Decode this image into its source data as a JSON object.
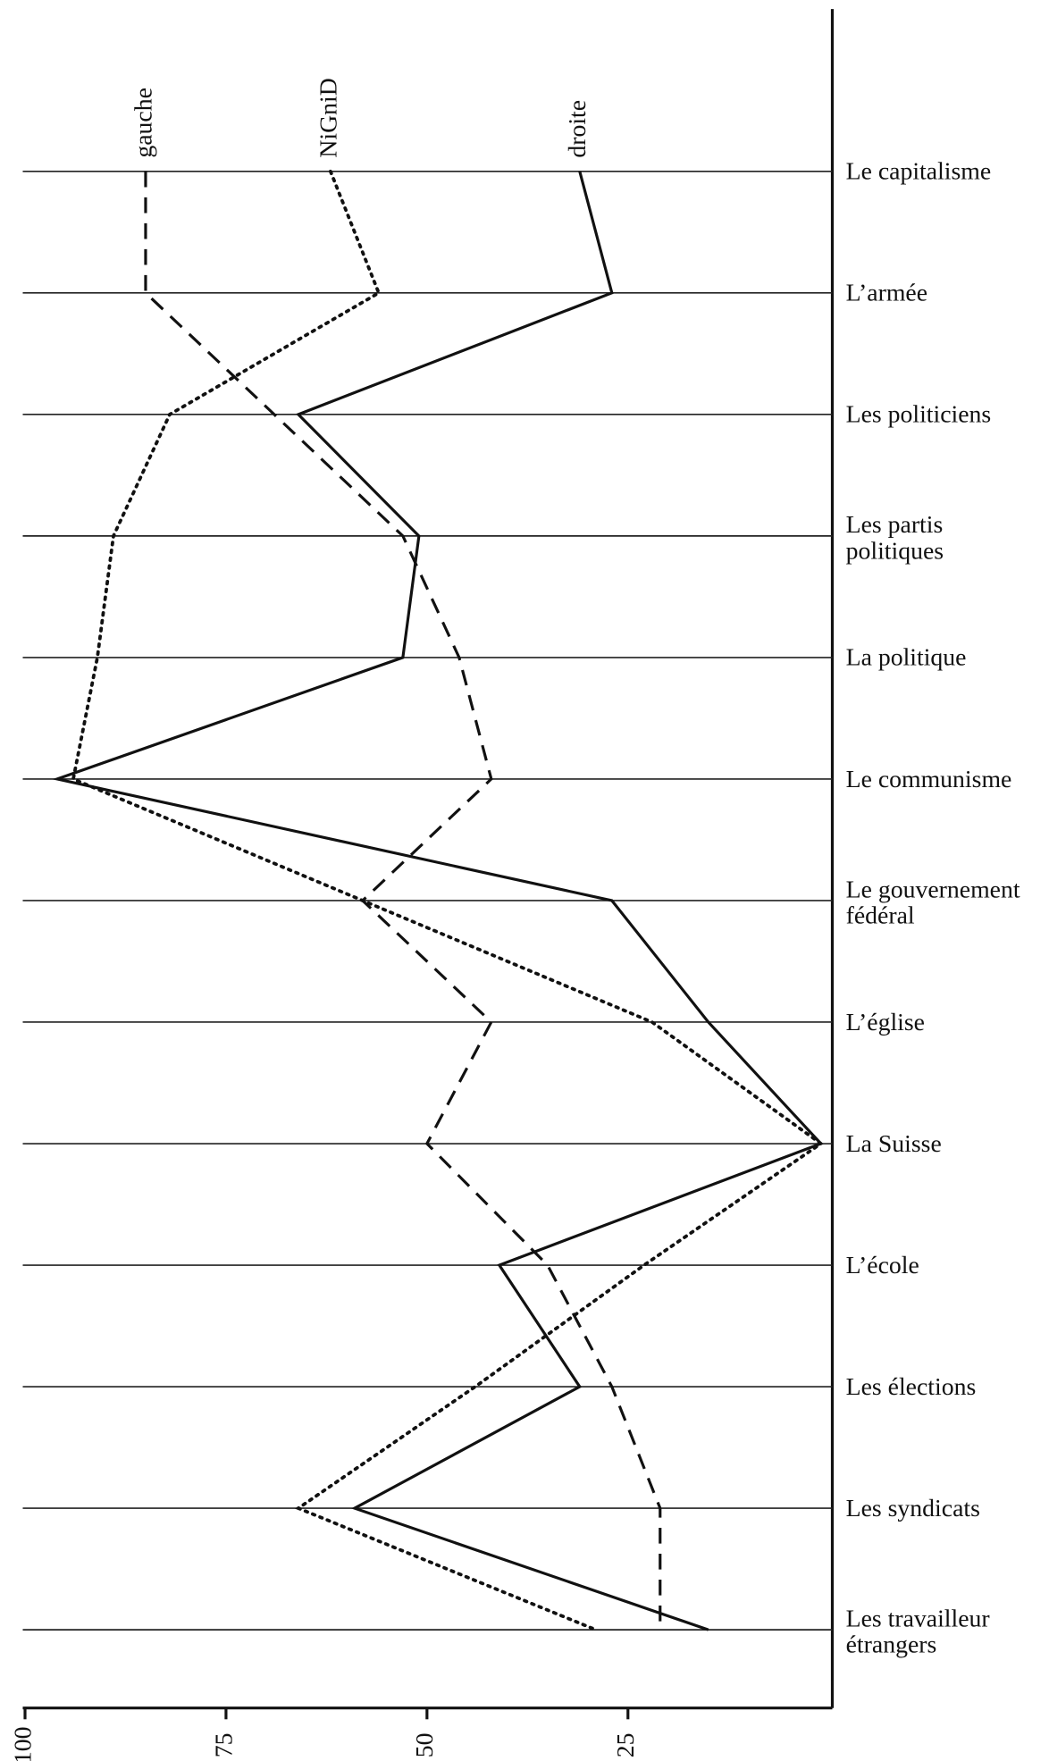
{
  "chart_data": {
    "type": "line",
    "orientation": "horizontal",
    "categories": [
      "Le capitalisme",
      "L’armée",
      "Les politiciens",
      "Les partis\npolitiques",
      "La politique",
      "Le communisme",
      "Le gouvernement\nfédéral",
      "L’église",
      "La Suisse",
      "L’école",
      "Les élections",
      "Les syndicats",
      "Les travailleur\nétrangers"
    ],
    "series": [
      {
        "name": "gauche",
        "color": "#111111",
        "style": "dashed",
        "values": [
          85,
          85,
          69,
          53,
          46,
          42,
          58,
          42,
          50,
          35,
          27,
          21,
          21
        ]
      },
      {
        "name": "NiGniD",
        "color": "#111111",
        "style": "dotted",
        "values": [
          62,
          56,
          82,
          89,
          91,
          94,
          58,
          22,
          1,
          23,
          44,
          66,
          29
        ]
      },
      {
        "name": "droite",
        "color": "#111111",
        "style": "solid",
        "values": [
          31,
          27,
          66,
          51,
          53,
          96,
          27,
          15,
          1,
          41,
          31,
          59,
          15
        ]
      }
    ],
    "xlim": [
      100,
      0
    ],
    "xticks": [
      100,
      75,
      50,
      25
    ],
    "grid": true
  }
}
